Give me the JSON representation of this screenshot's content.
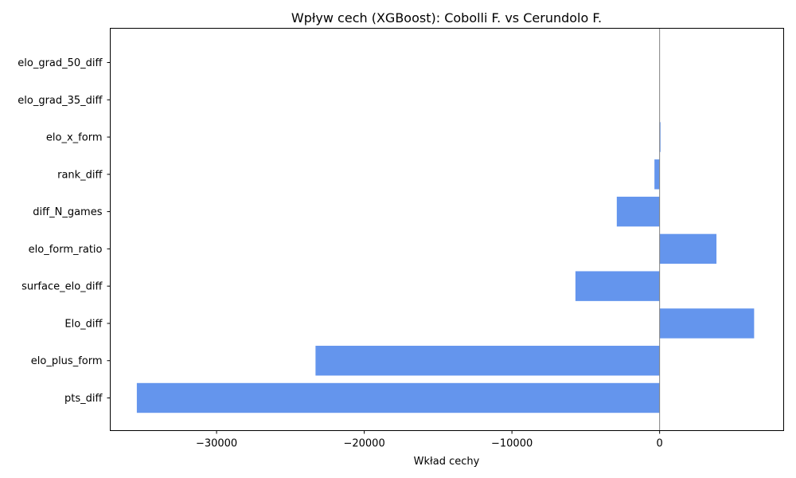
{
  "chart_data": {
    "type": "bar",
    "orientation": "horizontal",
    "title": "Wpływ cech (XGBoost): Cobolli F. vs Cerundolo F.",
    "xlabel": "Wkład cechy",
    "ylabel": "",
    "categories": [
      "elo_grad_50_diff",
      "elo_grad_35_diff",
      "elo_x_form",
      "rank_diff",
      "diff_N_games",
      "elo_form_ratio",
      "surface_elo_diff",
      "Elo_diff",
      "elo_plus_form",
      "pts_diff"
    ],
    "values": [
      0,
      0,
      60,
      -350,
      -2900,
      3850,
      -5700,
      6400,
      -23300,
      -35400
    ],
    "xlim": [
      -37200,
      8400
    ],
    "xticks": [
      -30000,
      -20000,
      -10000,
      0
    ],
    "xtick_labels": [
      "−30000",
      "−20000",
      "−10000",
      "0"
    ],
    "bar_color": "#6495ed",
    "zero_line_color": "#808080",
    "grid": false,
    "legend": "none"
  }
}
